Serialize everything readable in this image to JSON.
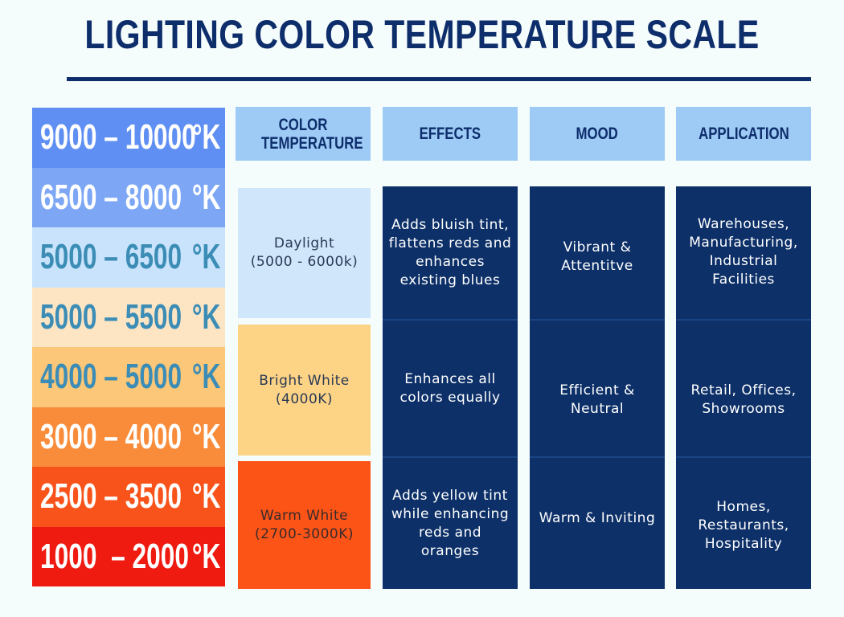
{
  "title": "LIGHTING COLOR TEMPERATURE SCALE",
  "scale": [
    {
      "range": "9000 – 10000",
      "unit": "°K",
      "bg": "#5f8ff2",
      "fg": "#ffffff"
    },
    {
      "range": "6500 – 8000",
      "unit": "°K",
      "bg": "#7da7f5",
      "fg": "#ffffff"
    },
    {
      "range": "5000 – 6500",
      "unit": "°K",
      "bg": "#c8e3fb",
      "fg": "#3c8db6"
    },
    {
      "range": "5000 – 5500",
      "unit": "°K",
      "bg": "#fde5c4",
      "fg": "#3c8db6"
    },
    {
      "range": "4000 – 5000",
      "unit": "°K",
      "bg": "#fcc778",
      "fg": "#3c8db6"
    },
    {
      "range": "3000 – 4000",
      "unit": "°K",
      "bg": "#f98c3a",
      "fg": "#ffffff"
    },
    {
      "range": "2500 – 3500",
      "unit": "°K",
      "bg": "#f8531a",
      "fg": "#ffffff"
    },
    {
      "range": "1000  – 2000",
      "unit": "°K",
      "bg": "#ef1a10",
      "fg": "#ffffff"
    }
  ],
  "headers": {
    "color_temperature": "COLOR TEMPERATURE",
    "effects": "EFFECTS",
    "mood": "MOOD",
    "application": "APPLICATION"
  },
  "rows": [
    {
      "temp_name": "Daylight",
      "temp_range": "(5000 - 6000k)",
      "effects": "Adds bluish tint, flattens reds and enhances existing blues",
      "mood": "Vibrant & Attentitve",
      "application": "Warehouses, Manufacturing, Industrial Facilities"
    },
    {
      "temp_name": "Bright White",
      "temp_range": "(4000K)",
      "effects": "Enhances all colors equally",
      "mood": "Efficient & Neutral",
      "application": "Retail, Offices, Showrooms"
    },
    {
      "temp_name": "Warm White",
      "temp_range": "(2700-3000K)",
      "effects": "Adds yellow tint while enhancing reds and oranges",
      "mood": "Warm & Inviting",
      "application": "Homes, Restaurants, Hospitality"
    }
  ],
  "colors": {
    "navy": "#0d2d6b",
    "header_blue": "#9ecbf5",
    "daylight_bg": "#cfe6fb",
    "bright_white_bg": "#fdd486",
    "warm_white_bg": "#fc5417"
  }
}
